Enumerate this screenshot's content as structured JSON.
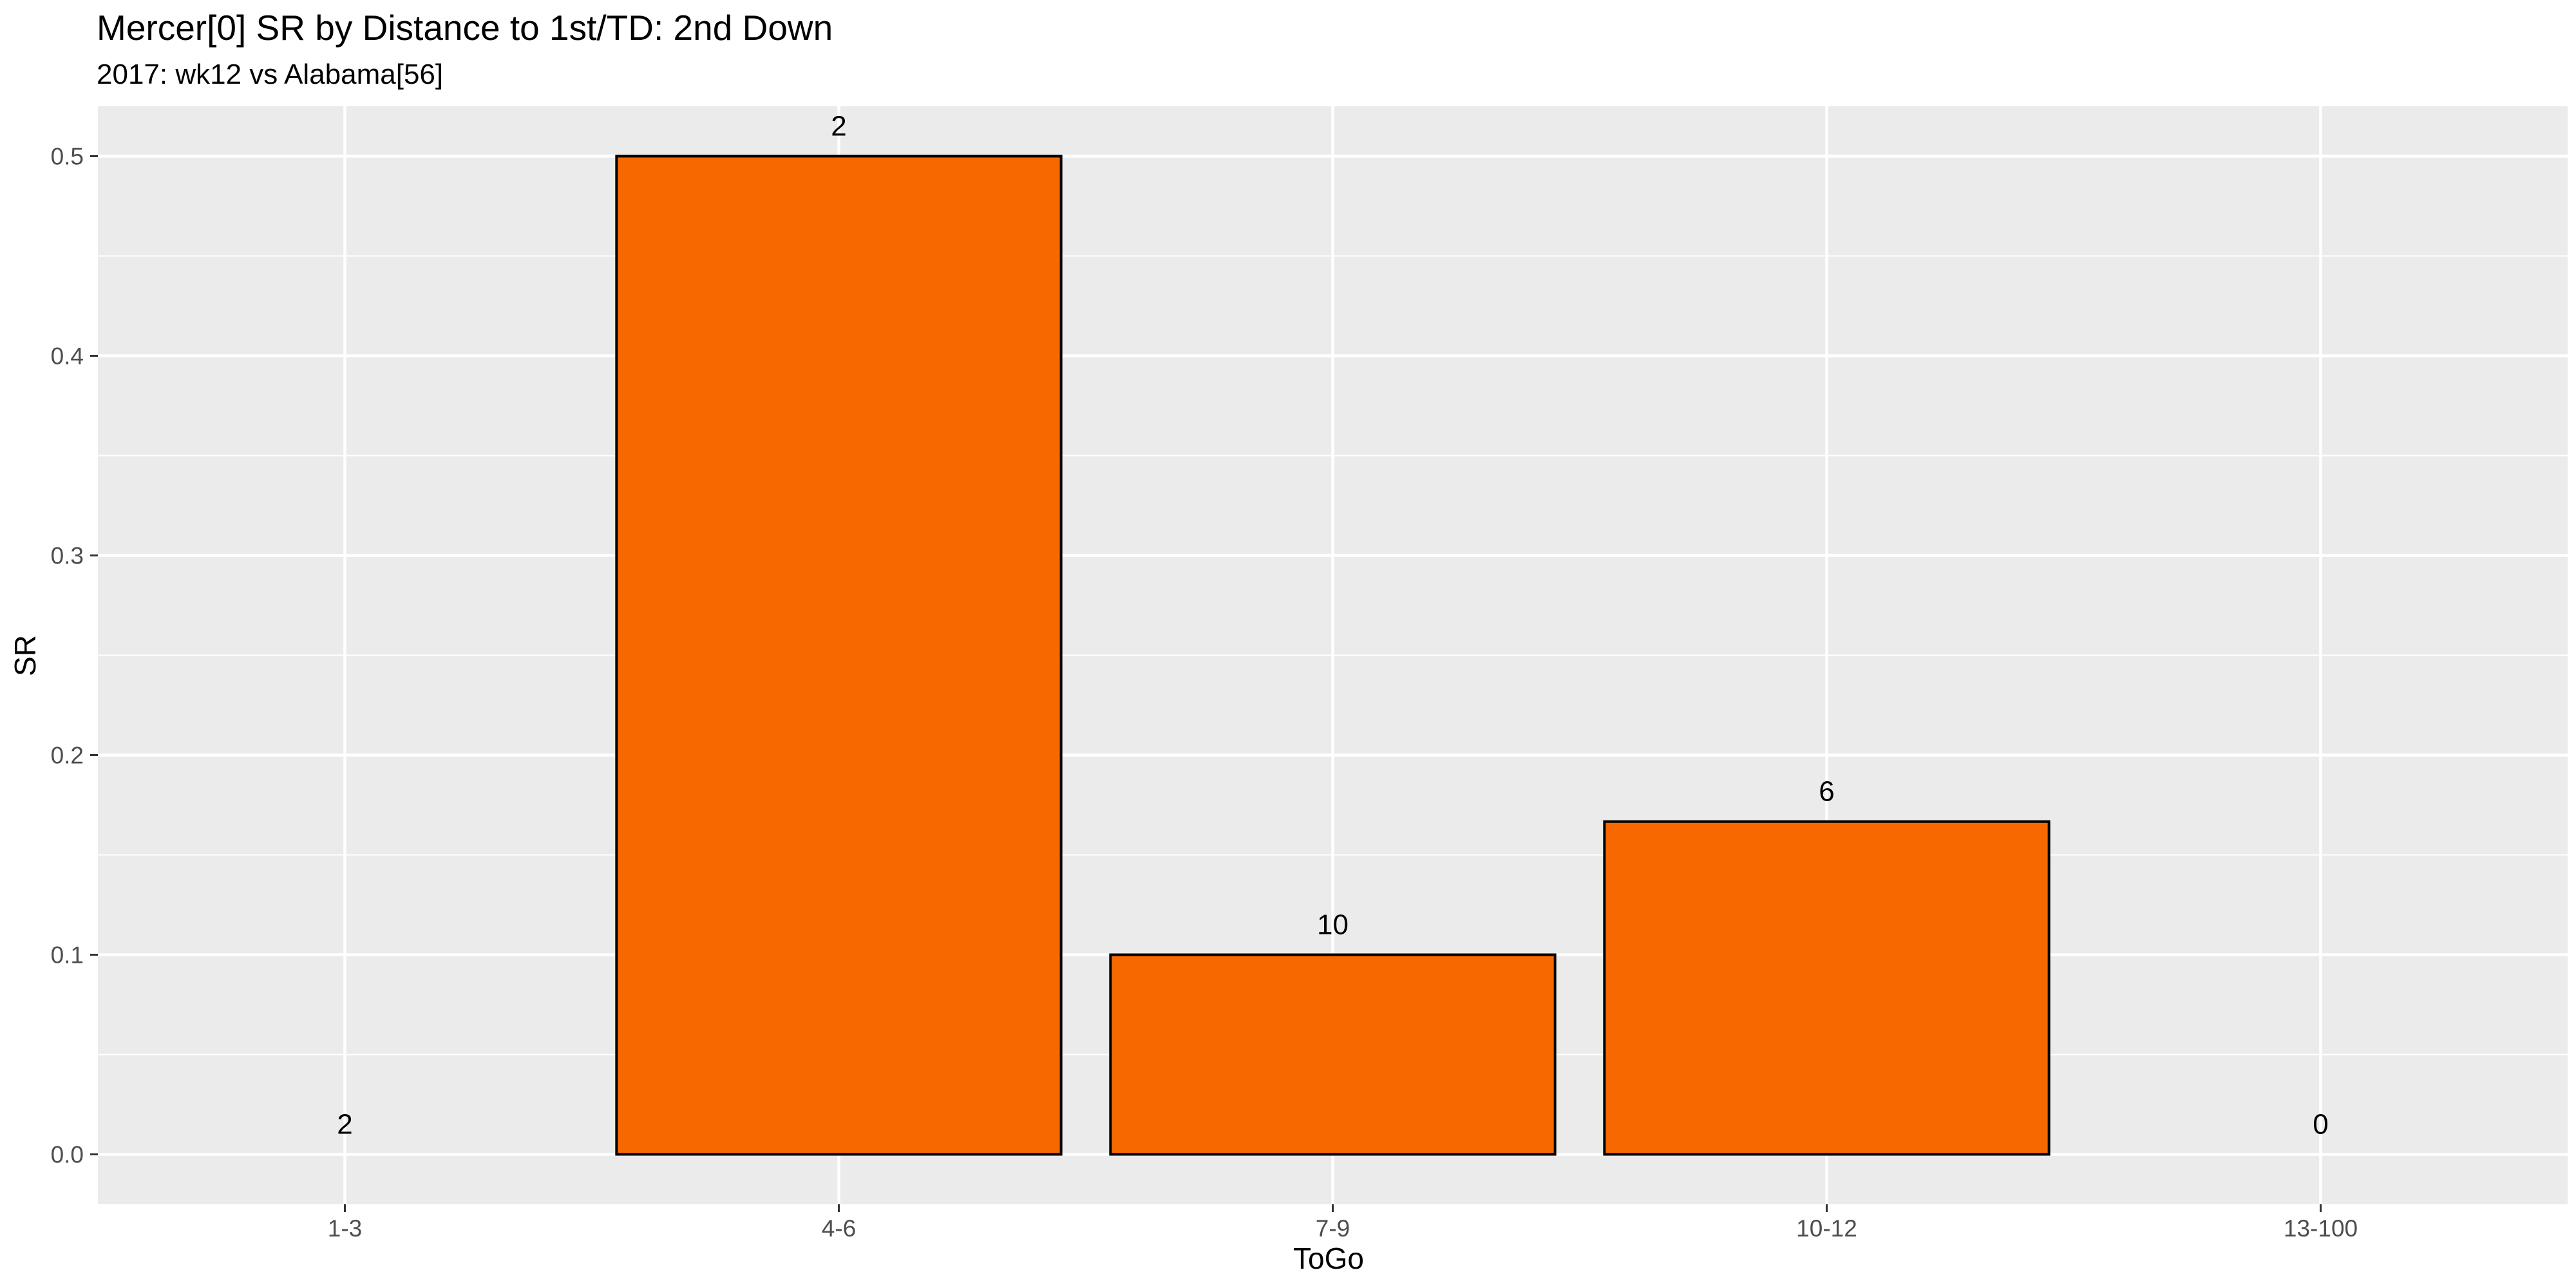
{
  "chart_data": {
    "type": "bar",
    "title": "Mercer[0] SR by Distance to 1st/TD: 2nd Down",
    "subtitle": "2017: wk12 vs Alabama[56]",
    "xlabel": "ToGo",
    "ylabel": "SR",
    "categories": [
      "1-3",
      "4-6",
      "7-9",
      "10-12",
      "13-100"
    ],
    "values": [
      0.0,
      0.5,
      0.1,
      0.1667,
      0.0
    ],
    "labels": [
      "2",
      "2",
      "10",
      "6",
      "0"
    ],
    "ylim": [
      -0.025,
      0.525
    ],
    "yticks": [
      0.0,
      0.1,
      0.2,
      0.3,
      0.4,
      0.5
    ],
    "ytick_labels": [
      "0.0",
      "0.1",
      "0.2",
      "0.3",
      "0.4",
      "0.5"
    ],
    "grid": true,
    "bar_color": "#f76900",
    "bar_edge_color": "#000000",
    "panel_color": "#ebebeb",
    "grid_color": "#ffffff"
  }
}
